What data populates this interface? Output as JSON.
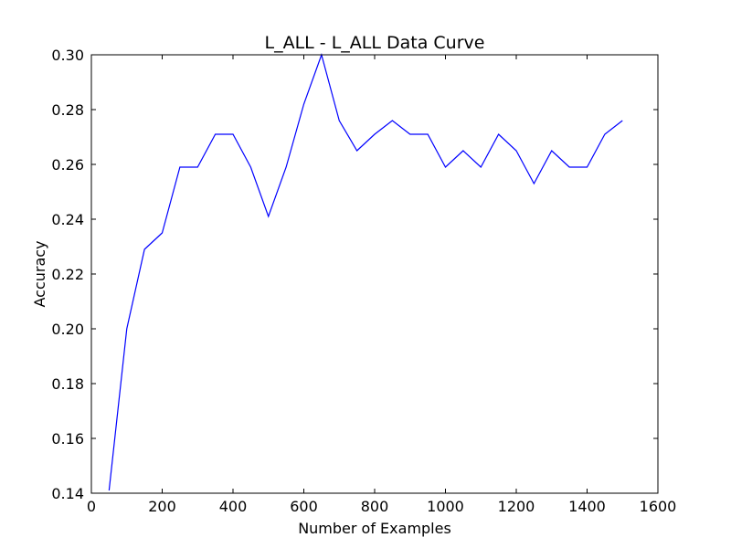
{
  "chart_data": {
    "type": "line",
    "title": "L_ALL - L_ALL Data Curve",
    "xlabel": "Number of Examples",
    "ylabel": "Accuracy",
    "xlim": [
      0,
      1600
    ],
    "ylim": [
      0.14,
      0.3
    ],
    "xticks": [
      0,
      200,
      400,
      600,
      800,
      1000,
      1200,
      1400,
      1600
    ],
    "xtick_labels": [
      "0",
      "200",
      "400",
      "600",
      "800",
      "1000",
      "1200",
      "1400",
      "1600"
    ],
    "yticks": [
      0.14,
      0.16,
      0.18,
      0.2,
      0.22,
      0.24,
      0.26,
      0.28,
      0.3
    ],
    "ytick_labels": [
      "0.14",
      "0.16",
      "0.18",
      "0.20",
      "0.22",
      "0.24",
      "0.26",
      "0.28",
      "0.30"
    ],
    "grid": false,
    "series": [
      {
        "color": "#0000ff",
        "x": [
          50,
          100,
          150,
          200,
          250,
          300,
          350,
          400,
          450,
          500,
          550,
          600,
          650,
          700,
          750,
          800,
          850,
          900,
          950,
          1000,
          1050,
          1100,
          1150,
          1200,
          1250,
          1300,
          1350,
          1400,
          1450,
          1500
        ],
        "y": [
          0.141,
          0.2,
          0.229,
          0.235,
          0.259,
          0.259,
          0.271,
          0.271,
          0.259,
          0.241,
          0.259,
          0.282,
          0.3,
          0.276,
          0.265,
          0.271,
          0.276,
          0.271,
          0.271,
          0.259,
          0.265,
          0.259,
          0.271,
          0.265,
          0.253,
          0.265,
          0.259,
          0.259,
          0.271,
          0.276
        ]
      }
    ]
  }
}
